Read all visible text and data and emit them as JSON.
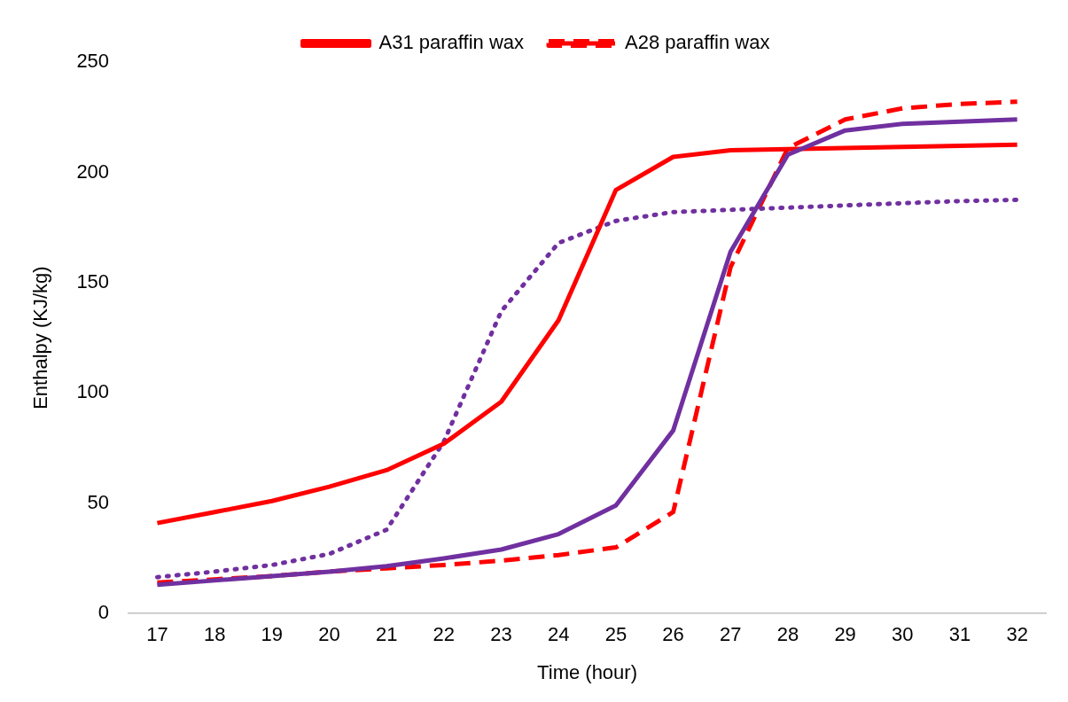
{
  "chart_data": {
    "type": "line",
    "xlabel": "Time (hour)",
    "ylabel": "Enthalpy (KJ/kg)",
    "categories": [
      "17",
      "18",
      "19",
      "20",
      "21",
      "22",
      "23",
      "24",
      "25",
      "26",
      "27",
      "28",
      "29",
      "30",
      "31",
      "32"
    ],
    "ylim": [
      0,
      250
    ],
    "yticks": [
      0,
      50,
      100,
      150,
      200,
      250
    ],
    "grid": false,
    "legend": "top",
    "marker": "none",
    "series": [
      {
        "color": "#7030a0",
        "line_style": "solid",
        "values": [
          13,
          15,
          17,
          19,
          21.5,
          25,
          29,
          36,
          49,
          83,
          164,
          208,
          219,
          222,
          223,
          224
        ]
      },
      {
        "name": "A31 paraffin wax",
        "color": "#ff0000",
        "line_style": "solid",
        "values": [
          41,
          46,
          51,
          57.5,
          65,
          77,
          96,
          133,
          192,
          207,
          210,
          210.5,
          211,
          211.5,
          212,
          212.5
        ]
      },
      {
        "color": "#7030a0",
        "line_style": "dotted",
        "values": [
          16.5,
          19,
          22,
          27,
          38,
          78,
          137,
          168,
          178,
          182,
          183,
          184,
          185,
          186,
          187,
          187.5
        ]
      },
      {
        "name": "A28 paraffin wax",
        "color": "#ff0000",
        "line_style": "dashed",
        "values": [
          14,
          15.5,
          17,
          19,
          20.5,
          22,
          24,
          26.5,
          30,
          46,
          157,
          211,
          224,
          229,
          231,
          232
        ]
      }
    ]
  }
}
